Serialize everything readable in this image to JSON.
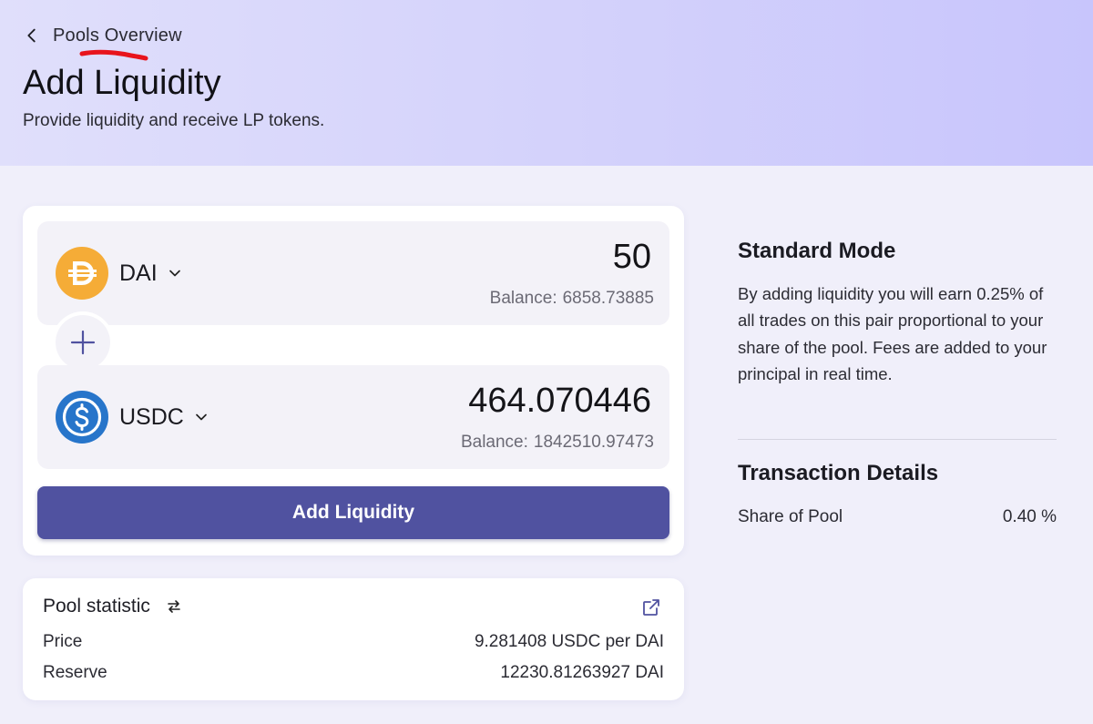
{
  "header": {
    "back_label": "Pools Overview",
    "title": "Add Liquidity",
    "subtitle": "Provide liquidity and receive LP tokens."
  },
  "token_a": {
    "symbol": "DAI",
    "amount": "50",
    "balance_label": "Balance:",
    "balance": "6858.73885",
    "icon": "dai-icon",
    "color": "#f5ac37"
  },
  "token_b": {
    "symbol": "USDC",
    "amount": "464.070446",
    "balance_label": "Balance:",
    "balance": "1842510.97473",
    "icon": "usdc-icon",
    "color": "#2775ca"
  },
  "actions": {
    "add_liquidity_label": "Add Liquidity"
  },
  "pool_statistic": {
    "title": "Pool statistic",
    "rows": [
      {
        "label": "Price",
        "value": "9.281408 USDC per DAI"
      },
      {
        "label": "Reserve",
        "value": "12230.81263927 DAI"
      }
    ]
  },
  "sidebar": {
    "mode_title": "Standard Mode",
    "mode_description": "By adding liquidity you will earn 0.25% of all trades on this pair proportional to your share of the pool. Fees are added to your principal in real time.",
    "tx_title": "Transaction Details",
    "tx_rows": [
      {
        "label": "Share of Pool",
        "value": "0.40 %"
      }
    ]
  },
  "colors": {
    "accent": "#5052a0",
    "hero_start": "#e0dffb",
    "hero_end": "#c8c5fc",
    "page_bg": "#f0effa",
    "annotation_red": "#e8141c"
  }
}
